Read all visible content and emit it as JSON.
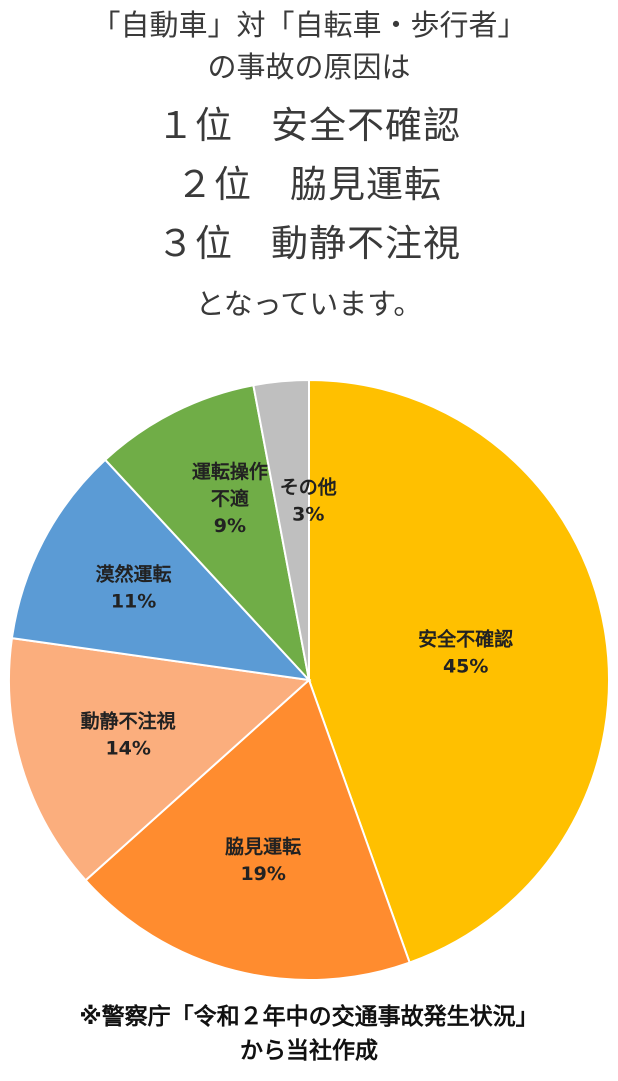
{
  "header": {
    "line1": "「自動車」対「自転車・歩行者」",
    "line2": "の事故の原因は",
    "rank1": "１位　安全不確認",
    "rank2": "２位　脇見運転",
    "rank3": "３位　動静不注視",
    "line6": "となっています。"
  },
  "chart_data": {
    "type": "pie",
    "title": "",
    "start_angle_deg": 0,
    "direction": "clockwise",
    "slices": [
      {
        "label_lines": [
          "安全不確認"
        ],
        "percent_label": "45%",
        "value": 45,
        "color": "#FFC000"
      },
      {
        "label_lines": [
          "脇見運転"
        ],
        "percent_label": "19%",
        "value": 19,
        "color": "#FF8C2F"
      },
      {
        "label_lines": [
          "動静不注視"
        ],
        "percent_label": "14%",
        "value": 14,
        "color": "#FBAE7D"
      },
      {
        "label_lines": [
          "漠然運転"
        ],
        "percent_label": "11%",
        "value": 11,
        "color": "#5B9BD5"
      },
      {
        "label_lines": [
          "運転操作",
          "不適"
        ],
        "percent_label": "9%",
        "value": 9,
        "color": "#70AD47"
      },
      {
        "label_lines": [
          "その他"
        ],
        "percent_label": "3%",
        "value": 3,
        "color": "#BFBFBF"
      }
    ]
  },
  "footer": {
    "line1": "※警察庁「令和２年中の交通事故発生状況」",
    "line2": "から当社作成"
  }
}
